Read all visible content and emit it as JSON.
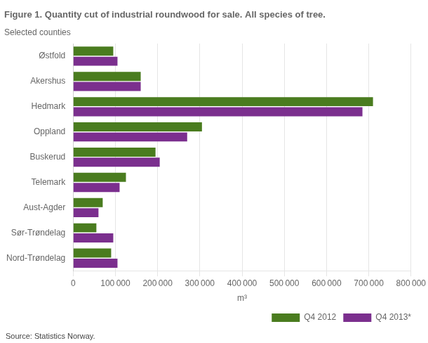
{
  "chart_data": {
    "type": "bar",
    "orientation": "horizontal",
    "title": "Figure 1. Quantity cut of industrial roundwood for sale. All species of tree.",
    "subtitle": "Selected counties",
    "annotations": [
      "Source: Statistics Norway."
    ],
    "categories": [
      "Østfold",
      "Akershus",
      "Hedmark",
      "Oppland",
      "Buskerud",
      "Telemark",
      "Aust-Agder",
      "Sør-Trøndelag",
      "Nord-Trøndelag"
    ],
    "series": [
      {
        "name": "Q4 2012",
        "color": "#4a7c1f",
        "values": [
          95000,
          160000,
          710000,
          305000,
          195000,
          125000,
          70000,
          55000,
          90000
        ]
      },
      {
        "name": "Q4 2013*",
        "color": "#7b2f8e",
        "values": [
          105000,
          160000,
          685000,
          270000,
          205000,
          110000,
          60000,
          95000,
          105000
        ]
      }
    ],
    "xlabel": "m³",
    "xlim": [
      0,
      800000
    ],
    "xticks": [
      0,
      {
        "value": 100000,
        "label": "100 000"
      },
      {
        "value": 200000,
        "label": "200 000"
      },
      {
        "value": 300000,
        "label": "300 000"
      },
      {
        "value": 400000,
        "label": "400 000"
      },
      {
        "value": 500000,
        "label": "500 000"
      },
      {
        "value": 600000,
        "label": "600 000"
      },
      {
        "value": 700000,
        "label": "700 000"
      },
      {
        "value": 800000,
        "label": "800 000"
      }
    ],
    "grid": true,
    "legend": "lower right"
  }
}
